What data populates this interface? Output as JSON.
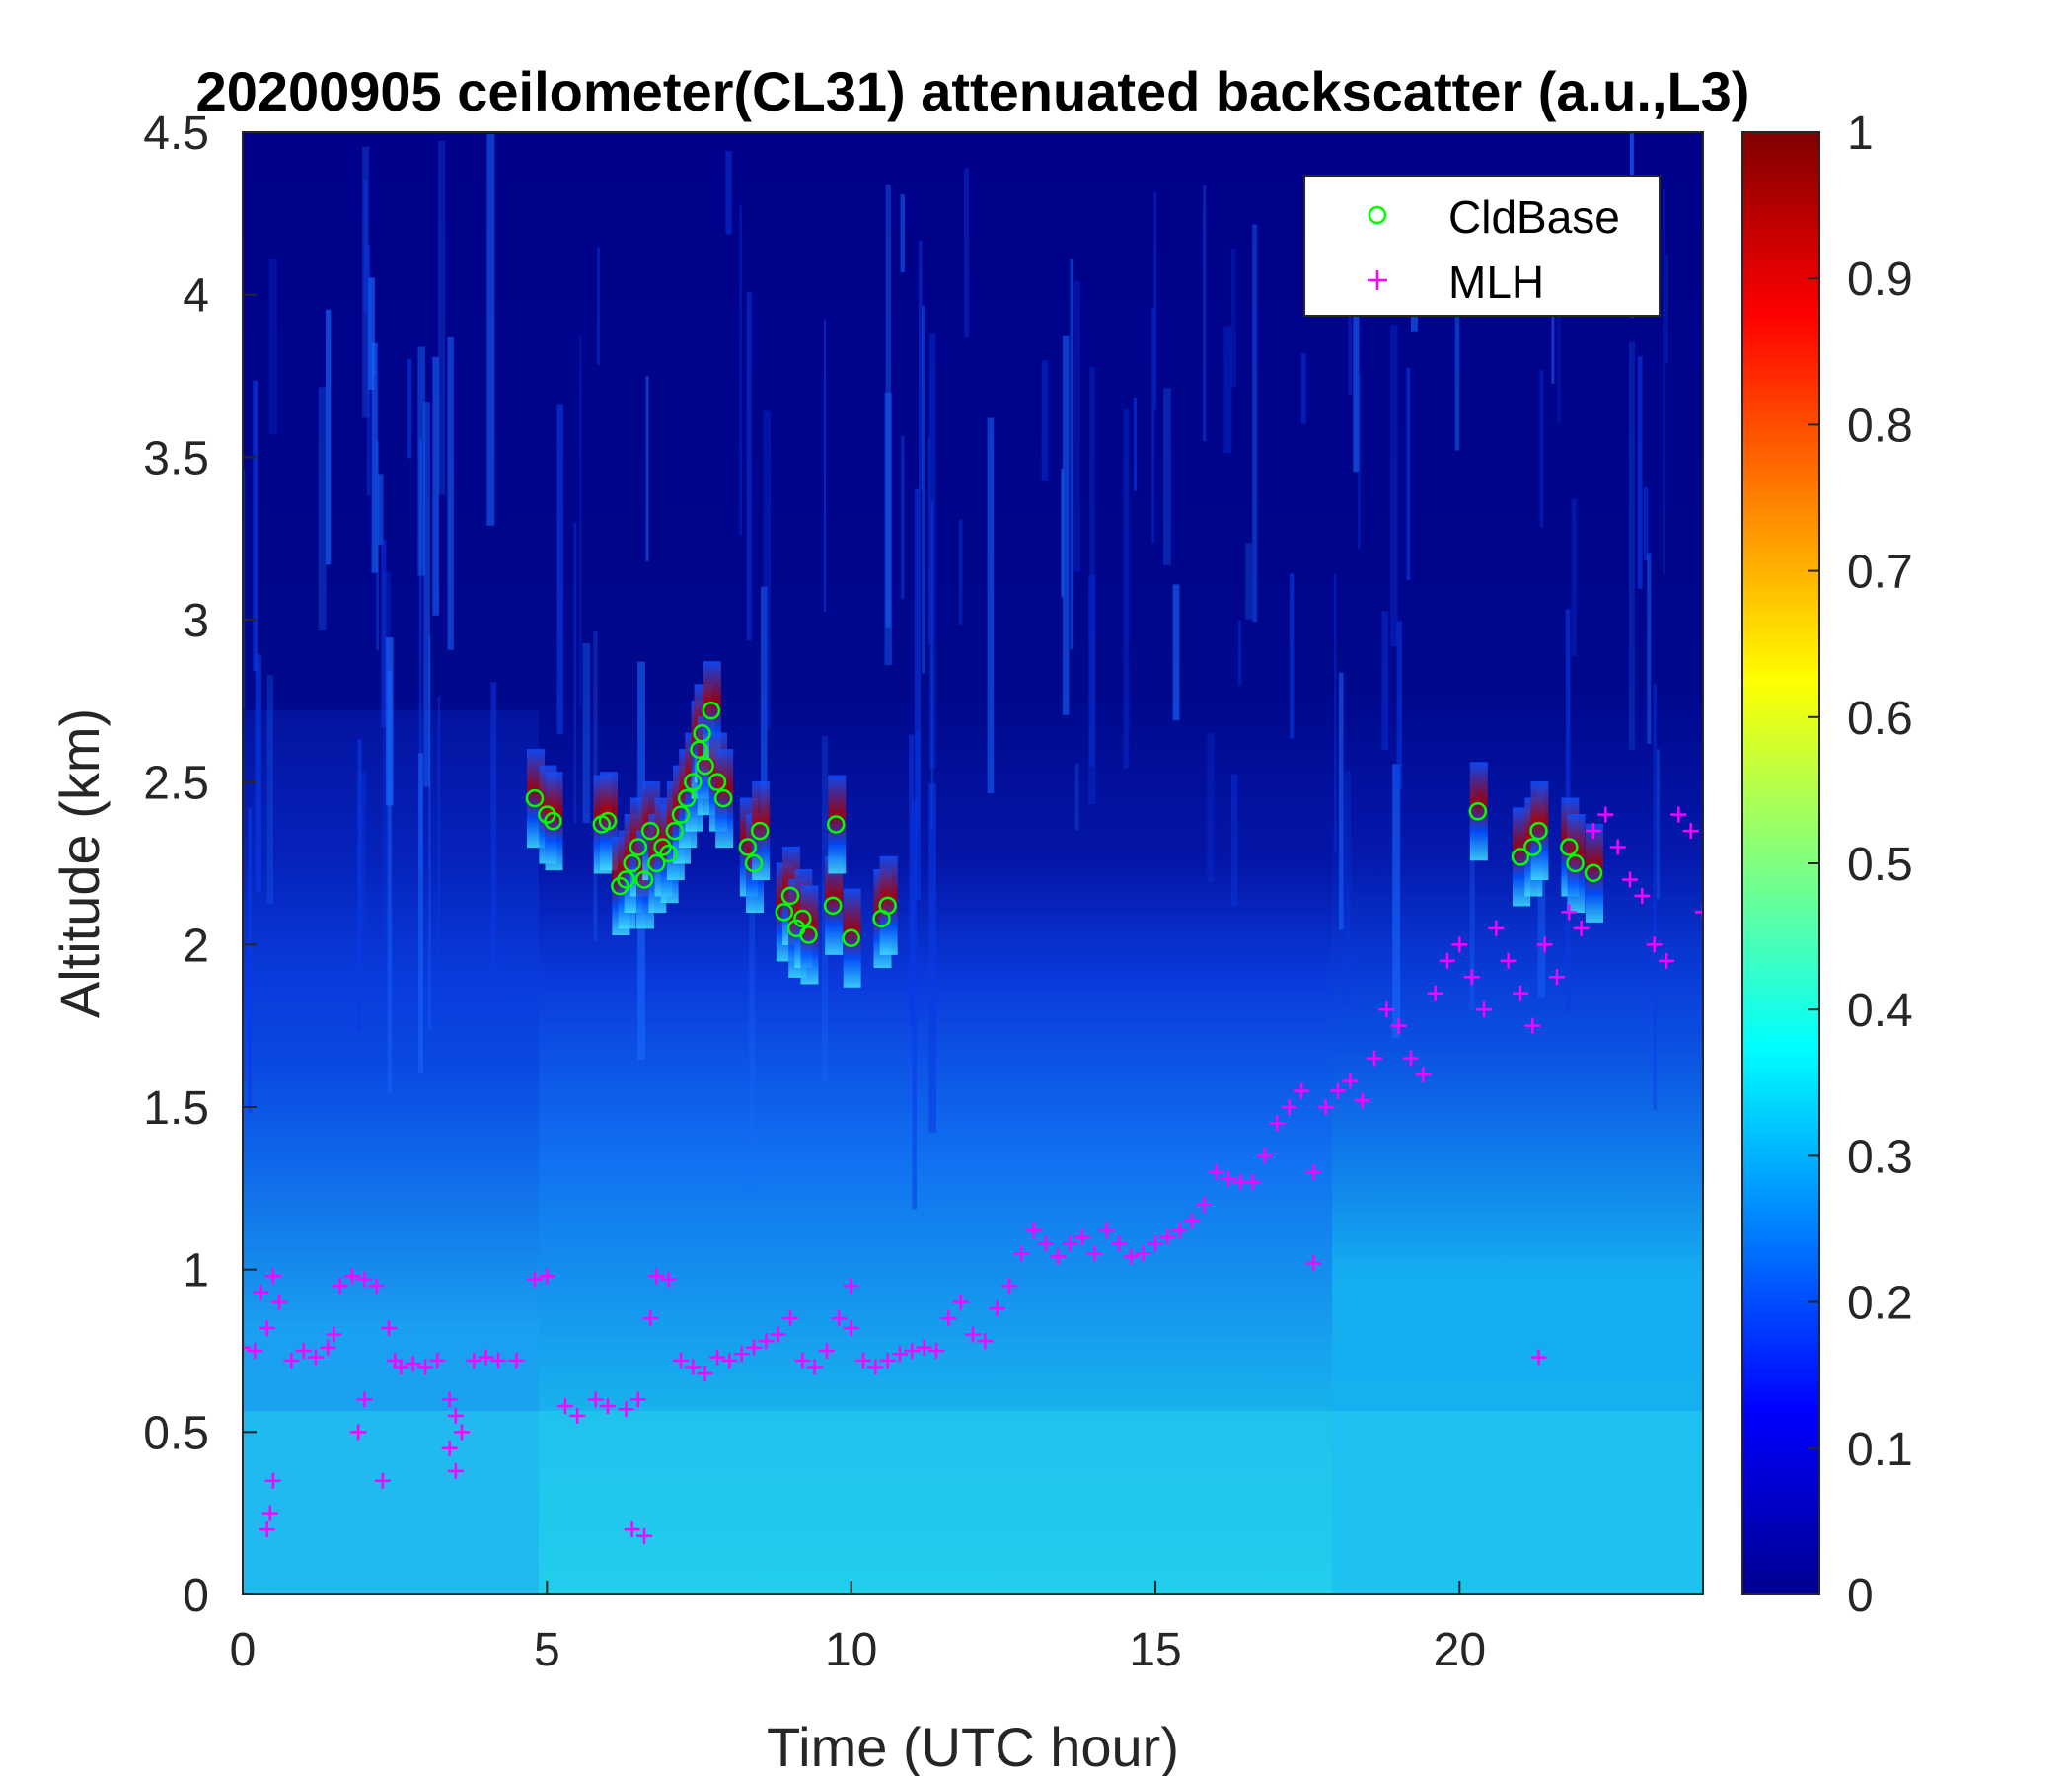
{
  "chart_data": {
    "type": "heatmap",
    "title": "20200905 ceilometer(CL31) attenuated backscatter (a.u.,L3)",
    "xlabel": "Time (UTC hour)",
    "ylabel": "Altitude (km)",
    "xlim": [
      0,
      24
    ],
    "ylim": [
      0,
      4.5
    ],
    "xticks": [
      "0",
      "5",
      "10",
      "15",
      "20"
    ],
    "yticks": [
      "0",
      "0.5",
      "1",
      "1.5",
      "2",
      "2.5",
      "3",
      "3.5",
      "4",
      "4.5"
    ],
    "colorbar": {
      "range": [
        0,
        1
      ],
      "ticks": [
        "0",
        "0.1",
        "0.2",
        "0.3",
        "0.4",
        "0.5",
        "0.6",
        "0.7",
        "0.8",
        "0.9",
        "1"
      ],
      "colormap": "jet"
    },
    "legend": {
      "location": "top-right",
      "entries": [
        {
          "name": "CldBase",
          "marker": "circle",
          "color": "#00ff00"
        },
        {
          "name": "MLH",
          "marker": "plus",
          "color": "#ff00ff"
        }
      ]
    },
    "cloud_base": {
      "name": "CldBase",
      "x": [
        4.8,
        5.0,
        5.1,
        5.9,
        6.0,
        6.2,
        6.3,
        6.4,
        6.5,
        6.6,
        6.7,
        6.8,
        6.9,
        7.0,
        7.1,
        7.2,
        7.3,
        7.4,
        7.5,
        7.55,
        7.6,
        7.7,
        7.8,
        7.9,
        8.3,
        8.4,
        8.5,
        8.9,
        9.0,
        9.1,
        9.2,
        9.3,
        9.7,
        9.75,
        10.0,
        10.5,
        10.6,
        20.3,
        21.0,
        21.2,
        21.3,
        21.8,
        21.9,
        22.2
      ],
      "y": [
        2.45,
        2.4,
        2.38,
        2.37,
        2.38,
        2.18,
        2.2,
        2.25,
        2.3,
        2.2,
        2.35,
        2.25,
        2.3,
        2.28,
        2.35,
        2.4,
        2.45,
        2.5,
        2.6,
        2.65,
        2.55,
        2.72,
        2.5,
        2.45,
        2.3,
        2.25,
        2.35,
        2.1,
        2.15,
        2.05,
        2.08,
        2.03,
        2.12,
        2.37,
        2.02,
        2.08,
        2.12,
        2.41,
        2.27,
        2.3,
        2.35,
        2.3,
        2.25,
        2.22
      ]
    },
    "mlh": {
      "name": "MLH",
      "x": [
        0.0,
        0.2,
        0.3,
        0.4,
        0.5,
        0.6,
        0.8,
        1.0,
        1.2,
        1.4,
        1.5,
        1.6,
        1.8,
        2.0,
        2.2,
        2.4,
        2.5,
        2.6,
        2.8,
        3.0,
        3.2,
        3.4,
        3.5,
        3.6,
        3.8,
        4.0,
        4.2,
        4.5,
        4.8,
        5.0,
        5.3,
        5.5,
        5.8,
        6.0,
        6.3,
        6.5,
        6.7,
        6.8,
        7.0,
        7.2,
        7.4,
        7.6,
        7.8,
        8.0,
        8.2,
        8.4,
        8.6,
        8.8,
        9.0,
        9.2,
        9.4,
        9.6,
        9.8,
        10.0,
        10.2,
        10.4,
        10.6,
        10.8,
        11.0,
        11.2,
        11.4,
        11.6,
        11.8,
        12.0,
        12.2,
        12.4,
        12.6,
        12.8,
        13.0,
        13.2,
        13.4,
        13.6,
        13.8,
        14.0,
        14.2,
        14.4,
        14.6,
        14.8,
        15.0,
        15.2,
        15.4,
        15.6,
        15.8,
        16.0,
        16.2,
        16.4,
        16.6,
        16.8,
        17.0,
        17.2,
        17.4,
        17.6,
        17.8,
        18.0,
        18.2,
        18.4,
        18.6,
        18.8,
        19.0,
        19.2,
        19.4,
        19.6,
        19.8,
        20.0,
        20.2,
        20.4,
        20.6,
        20.8,
        21.0,
        21.2,
        21.4,
        21.6,
        21.8,
        22.0,
        22.2,
        22.4,
        22.6,
        22.8,
        23.0,
        23.2,
        23.4,
        23.6,
        23.8,
        24.0,
        0.4,
        0.45,
        0.5,
        1.9,
        2.0,
        2.3,
        3.4,
        3.5,
        6.4,
        6.6,
        10.0,
        17.6,
        21.3
      ],
      "y": [
        0.76,
        0.75,
        0.93,
        0.82,
        0.98,
        0.9,
        0.72,
        0.75,
        0.73,
        0.76,
        0.8,
        0.95,
        0.98,
        0.97,
        0.95,
        0.82,
        0.72,
        0.7,
        0.71,
        0.7,
        0.72,
        0.6,
        0.55,
        0.5,
        0.72,
        0.73,
        0.72,
        0.72,
        0.97,
        0.98,
        0.58,
        0.55,
        0.6,
        0.58,
        0.57,
        0.6,
        0.85,
        0.98,
        0.97,
        0.72,
        0.7,
        0.68,
        0.73,
        0.72,
        0.74,
        0.76,
        0.78,
        0.8,
        0.85,
        0.72,
        0.7,
        0.75,
        0.85,
        0.95,
        0.72,
        0.7,
        0.72,
        0.74,
        0.75,
        0.76,
        0.75,
        0.85,
        0.9,
        0.8,
        0.78,
        0.88,
        0.95,
        1.05,
        1.12,
        1.08,
        1.04,
        1.08,
        1.1,
        1.05,
        1.12,
        1.08,
        1.04,
        1.05,
        1.08,
        1.1,
        1.12,
        1.15,
        1.2,
        1.3,
        1.28,
        1.27,
        1.27,
        1.35,
        1.45,
        1.5,
        1.55,
        1.3,
        1.5,
        1.55,
        1.58,
        1.52,
        1.65,
        1.8,
        1.75,
        1.65,
        1.6,
        1.85,
        1.95,
        2.0,
        1.9,
        1.8,
        2.05,
        1.95,
        1.85,
        1.75,
        2.0,
        1.9,
        2.1,
        2.05,
        2.35,
        2.4,
        2.3,
        2.2,
        2.15,
        2.0,
        1.95,
        2.4,
        2.35,
        2.1,
        0.2,
        0.25,
        0.35,
        0.5,
        0.6,
        0.35,
        0.45,
        0.38,
        0.2,
        0.18,
        0.82,
        1.02,
        0.73
      ]
    }
  }
}
